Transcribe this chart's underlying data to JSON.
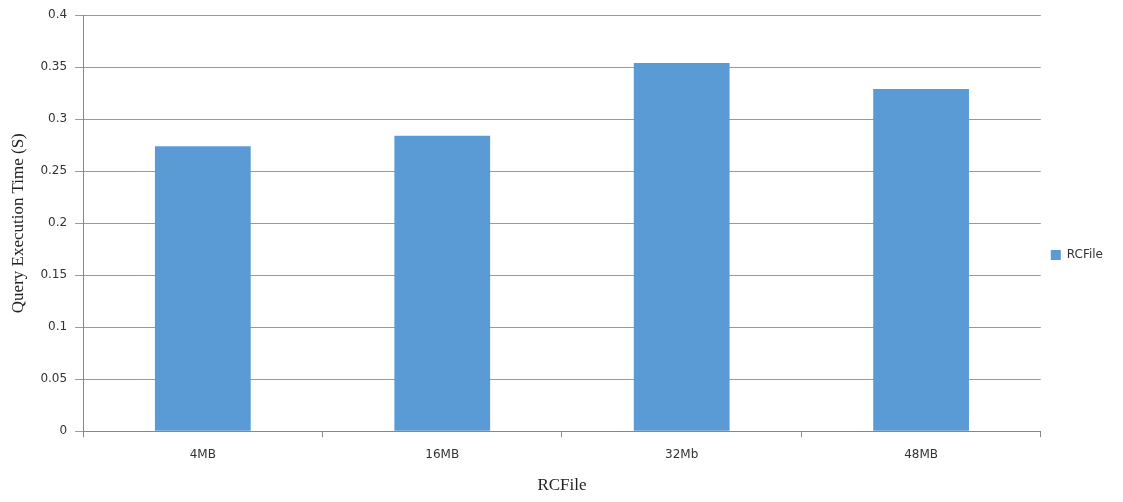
{
  "chart_data": {
    "type": "bar",
    "xlabel": "RCFile",
    "ylabel": "Query Execution Time (S)",
    "categories": [
      "4MB",
      "16MB",
      "32Mb",
      "48MB"
    ],
    "series": [
      {
        "name": "RCFile",
        "color": "#5b9bd5",
        "values": [
          0.274,
          0.284,
          0.354,
          0.329
        ]
      }
    ],
    "ylim": [
      0,
      0.4
    ],
    "yticks": [
      0,
      0.05,
      0.1,
      0.15,
      0.2,
      0.25,
      0.3,
      0.35,
      0.4
    ],
    "grid": "y",
    "legend": "right"
  }
}
